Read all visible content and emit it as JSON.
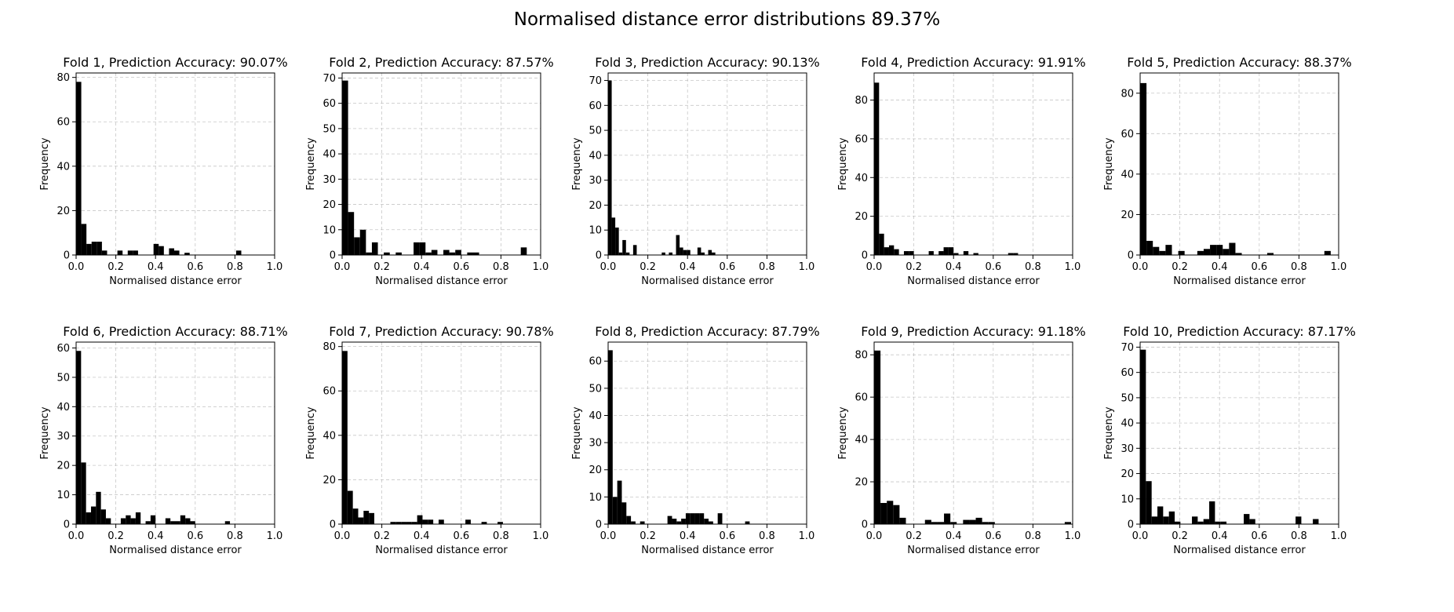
{
  "figure": {
    "title": "Normalised distance error distributions 89.37%"
  },
  "style": {
    "bar_color": "#000000",
    "grid_color": "#b0b0b0",
    "axis_color": "#000000"
  },
  "chart_data": [
    {
      "type": "bar",
      "title": "Fold 1, Prediction Accuracy: 90.07%",
      "xlabel": "Normalised distance error",
      "ylabel": "Frequency",
      "xlim": [
        0,
        1.0
      ],
      "ylim": [
        0,
        82
      ],
      "xticks": [
        "0.0",
        "0.2",
        "0.4",
        "0.6",
        "0.8",
        "1.0"
      ],
      "yticks": [
        0,
        20,
        40,
        60,
        80
      ],
      "grid": true,
      "bin_width": 0.026,
      "x": [
        0.0,
        0.026,
        0.052,
        0.078,
        0.104,
        0.13,
        0.208,
        0.26,
        0.286,
        0.39,
        0.416,
        0.468,
        0.494,
        0.546,
        0.806
      ],
      "values": [
        78,
        14,
        5,
        6,
        6,
        2,
        2,
        2,
        2,
        5,
        4,
        3,
        2,
        1,
        2
      ]
    },
    {
      "type": "bar",
      "title": "Fold 2, Prediction Accuracy: 87.57%",
      "xlabel": "Normalised distance error",
      "ylabel": "Frequency",
      "xlim": [
        0,
        1.0
      ],
      "ylim": [
        0,
        72
      ],
      "xticks": [
        "0.0",
        "0.2",
        "0.4",
        "0.6",
        "0.8",
        "1.0"
      ],
      "yticks": [
        0,
        10,
        20,
        30,
        40,
        50,
        60,
        70
      ],
      "grid": true,
      "bin_width": 0.03,
      "x": [
        0.0,
        0.03,
        0.06,
        0.09,
        0.12,
        0.15,
        0.21,
        0.27,
        0.36,
        0.39,
        0.42,
        0.45,
        0.51,
        0.54,
        0.57,
        0.63,
        0.66,
        0.9
      ],
      "values": [
        69,
        17,
        7,
        10,
        1,
        5,
        1,
        1,
        5,
        5,
        1,
        2,
        2,
        1,
        2,
        1,
        1,
        3
      ]
    },
    {
      "type": "bar",
      "title": "Fold 3, Prediction Accuracy: 90.13%",
      "xlabel": "Normalised distance error",
      "ylabel": "Frequency",
      "xlim": [
        0,
        1.0
      ],
      "ylim": [
        0,
        73
      ],
      "xticks": [
        "0.0",
        "0.2",
        "0.4",
        "0.6",
        "0.8",
        "1.0"
      ],
      "yticks": [
        0,
        10,
        20,
        30,
        40,
        50,
        60,
        70
      ],
      "grid": true,
      "bin_width": 0.018,
      "x": [
        0.0,
        0.018,
        0.036,
        0.054,
        0.072,
        0.09,
        0.126,
        0.27,
        0.306,
        0.342,
        0.36,
        0.378,
        0.396,
        0.45,
        0.468,
        0.504,
        0.522
      ],
      "values": [
        70,
        15,
        11,
        1,
        6,
        1,
        4,
        1,
        1,
        8,
        3,
        2,
        2,
        3,
        1,
        2,
        1
      ]
    },
    {
      "type": "bar",
      "title": "Fold 4, Prediction Accuracy: 91.91%",
      "xlabel": "Normalised distance error",
      "ylabel": "Frequency",
      "xlim": [
        0,
        1.0
      ],
      "ylim": [
        0,
        94
      ],
      "xticks": [
        "0.0",
        "0.2",
        "0.4",
        "0.6",
        "0.8",
        "1.0"
      ],
      "yticks": [
        0,
        20,
        40,
        60,
        80
      ],
      "grid": true,
      "bin_width": 0.025,
      "x": [
        0.0,
        0.025,
        0.05,
        0.075,
        0.1,
        0.15,
        0.175,
        0.275,
        0.325,
        0.35,
        0.375,
        0.4,
        0.45,
        0.5,
        0.675,
        0.7
      ],
      "values": [
        89,
        11,
        4,
        5,
        3,
        2,
        2,
        2,
        2,
        4,
        4,
        1,
        2,
        1,
        1,
        1
      ]
    },
    {
      "type": "bar",
      "title": "Fold 5, Prediction Accuracy: 88.37%",
      "xlabel": "Normalised distance error",
      "ylabel": "Frequency",
      "xlim": [
        0,
        1.0
      ],
      "ylim": [
        0,
        90
      ],
      "xticks": [
        "0.0",
        "0.2",
        "0.4",
        "0.6",
        "0.8",
        "1.0"
      ],
      "yticks": [
        0,
        20,
        40,
        60,
        80
      ],
      "grid": true,
      "bin_width": 0.032,
      "x": [
        0.0,
        0.032,
        0.064,
        0.096,
        0.128,
        0.192,
        0.288,
        0.32,
        0.352,
        0.384,
        0.416,
        0.448,
        0.48,
        0.64,
        0.928
      ],
      "values": [
        85,
        7,
        4,
        2,
        5,
        2,
        2,
        3,
        5,
        5,
        3,
        6,
        1,
        1,
        2
      ]
    },
    {
      "type": "bar",
      "title": "Fold 6, Prediction Accuracy: 88.71%",
      "xlabel": "Normalised distance error",
      "ylabel": "Frequency",
      "xlim": [
        0,
        1.0
      ],
      "ylim": [
        0,
        62
      ],
      "xticks": [
        "0.0",
        "0.2",
        "0.4",
        "0.6",
        "0.8",
        "1.0"
      ],
      "yticks": [
        0,
        10,
        20,
        30,
        40,
        50,
        60
      ],
      "grid": true,
      "bin_width": 0.025,
      "x": [
        0.0,
        0.025,
        0.05,
        0.075,
        0.1,
        0.125,
        0.15,
        0.225,
        0.25,
        0.275,
        0.3,
        0.35,
        0.375,
        0.45,
        0.475,
        0.5,
        0.525,
        0.55,
        0.575,
        0.75
      ],
      "values": [
        59,
        21,
        4,
        6,
        11,
        5,
        2,
        2,
        3,
        2,
        4,
        1,
        3,
        2,
        1,
        1,
        3,
        2,
        1,
        1
      ]
    },
    {
      "type": "bar",
      "title": "Fold 7, Prediction Accuracy: 90.78%",
      "xlabel": "Normalised distance error",
      "ylabel": "Frequency",
      "xlim": [
        0,
        1.0
      ],
      "ylim": [
        0,
        82
      ],
      "xticks": [
        "0.0",
        "0.2",
        "0.4",
        "0.6",
        "0.8",
        "1.0"
      ],
      "yticks": [
        0,
        20,
        40,
        60,
        80
      ],
      "grid": true,
      "bin_width": 0.027,
      "x": [
        0.0,
        0.027,
        0.054,
        0.081,
        0.108,
        0.135,
        0.243,
        0.27,
        0.297,
        0.324,
        0.351,
        0.378,
        0.405,
        0.432,
        0.486,
        0.621,
        0.702,
        0.783
      ],
      "values": [
        78,
        15,
        7,
        3,
        6,
        5,
        1,
        1,
        1,
        1,
        1,
        4,
        2,
        2,
        2,
        2,
        1,
        1
      ]
    },
    {
      "type": "bar",
      "title": "Fold 8, Prediction Accuracy: 87.79%",
      "xlabel": "Normalised distance error",
      "ylabel": "Frequency",
      "xlim": [
        0,
        1.0
      ],
      "ylim": [
        0,
        67
      ],
      "xticks": [
        "0.0",
        "0.2",
        "0.4",
        "0.6",
        "0.8",
        "1.0"
      ],
      "yticks": [
        0,
        10,
        20,
        30,
        40,
        50,
        60
      ],
      "grid": true,
      "bin_width": 0.023,
      "x": [
        0.0,
        0.023,
        0.046,
        0.069,
        0.092,
        0.115,
        0.161,
        0.299,
        0.322,
        0.345,
        0.368,
        0.391,
        0.414,
        0.437,
        0.46,
        0.483,
        0.506,
        0.552,
        0.69
      ],
      "values": [
        64,
        10,
        16,
        8,
        3,
        1,
        1,
        3,
        2,
        1,
        2,
        4,
        4,
        4,
        4,
        2,
        1,
        4,
        1
      ]
    },
    {
      "type": "bar",
      "title": "Fold 9, Prediction Accuracy: 91.18%",
      "xlabel": "Normalised distance error",
      "ylabel": "Frequency",
      "xlim": [
        0,
        1.0
      ],
      "ylim": [
        0,
        86
      ],
      "xticks": [
        "0.0",
        "0.2",
        "0.4",
        "0.6",
        "0.8",
        "1.0"
      ],
      "yticks": [
        0,
        20,
        40,
        60,
        80
      ],
      "grid": true,
      "bin_width": 0.032,
      "x": [
        0.0,
        0.032,
        0.064,
        0.096,
        0.128,
        0.256,
        0.288,
        0.32,
        0.352,
        0.384,
        0.448,
        0.48,
        0.512,
        0.544,
        0.576,
        0.96
      ],
      "values": [
        82,
        10,
        11,
        9,
        3,
        2,
        1,
        1,
        5,
        1,
        2,
        2,
        3,
        1,
        1,
        1
      ]
    },
    {
      "type": "bar",
      "title": "Fold 10, Prediction Accuracy: 87.17%",
      "xlabel": "Normalised distance error",
      "ylabel": "Frequency",
      "xlim": [
        0,
        1.0
      ],
      "ylim": [
        0,
        72
      ],
      "xticks": [
        "0.0",
        "0.2",
        "0.4",
        "0.6",
        "0.8",
        "1.0"
      ],
      "yticks": [
        0,
        10,
        20,
        30,
        40,
        50,
        60,
        70
      ],
      "grid": true,
      "bin_width": 0.029,
      "x": [
        0.0,
        0.029,
        0.058,
        0.087,
        0.116,
        0.145,
        0.174,
        0.261,
        0.29,
        0.319,
        0.348,
        0.377,
        0.406,
        0.522,
        0.551,
        0.783,
        0.87
      ],
      "values": [
        69,
        17,
        3,
        7,
        3,
        5,
        1,
        3,
        1,
        2,
        9,
        1,
        1,
        4,
        2,
        3,
        2
      ]
    }
  ]
}
